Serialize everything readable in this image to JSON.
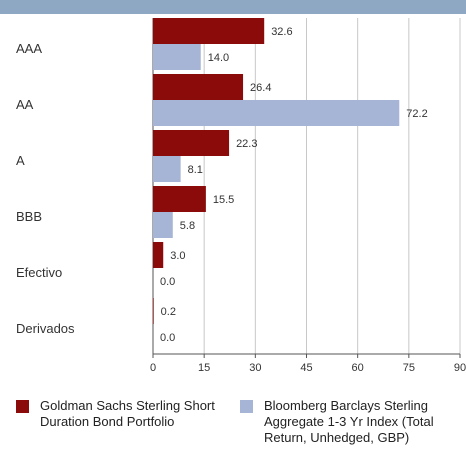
{
  "chart_data": {
    "type": "bar",
    "orientation": "horizontal",
    "categories": [
      "AAA",
      "AA",
      "A",
      "BBB",
      "Efectivo",
      "Derivados"
    ],
    "series": [
      {
        "name": "Goldman Sachs Sterling Short Duration Bond Portfolio",
        "color": "#8b0a0a",
        "values": [
          32.6,
          26.4,
          22.3,
          15.5,
          3.0,
          0.2
        ],
        "labels": [
          "32.6",
          "26.4",
          "22.3",
          "15.5",
          "3.0",
          "0.2"
        ]
      },
      {
        "name": "Bloomberg Barclays Sterling Aggregate 1-3 Yr Index (Total Return, Unhedged, GBP)",
        "color": "#a6b5d6",
        "values": [
          14.0,
          72.2,
          8.1,
          5.8,
          0.0,
          0.0
        ],
        "labels": [
          "14.0",
          "72.2",
          "8.1",
          "5.8",
          "0.0",
          "0.0"
        ]
      }
    ],
    "xlim": [
      0,
      90
    ],
    "xticks": [
      "0",
      "15",
      "30",
      "45",
      "60",
      "75",
      "90"
    ],
    "grid": true,
    "legend_position": "bottom"
  },
  "colors": {
    "top_band": "#8ea8c3",
    "grid": "#c8c8c8",
    "axis": "#555555"
  }
}
